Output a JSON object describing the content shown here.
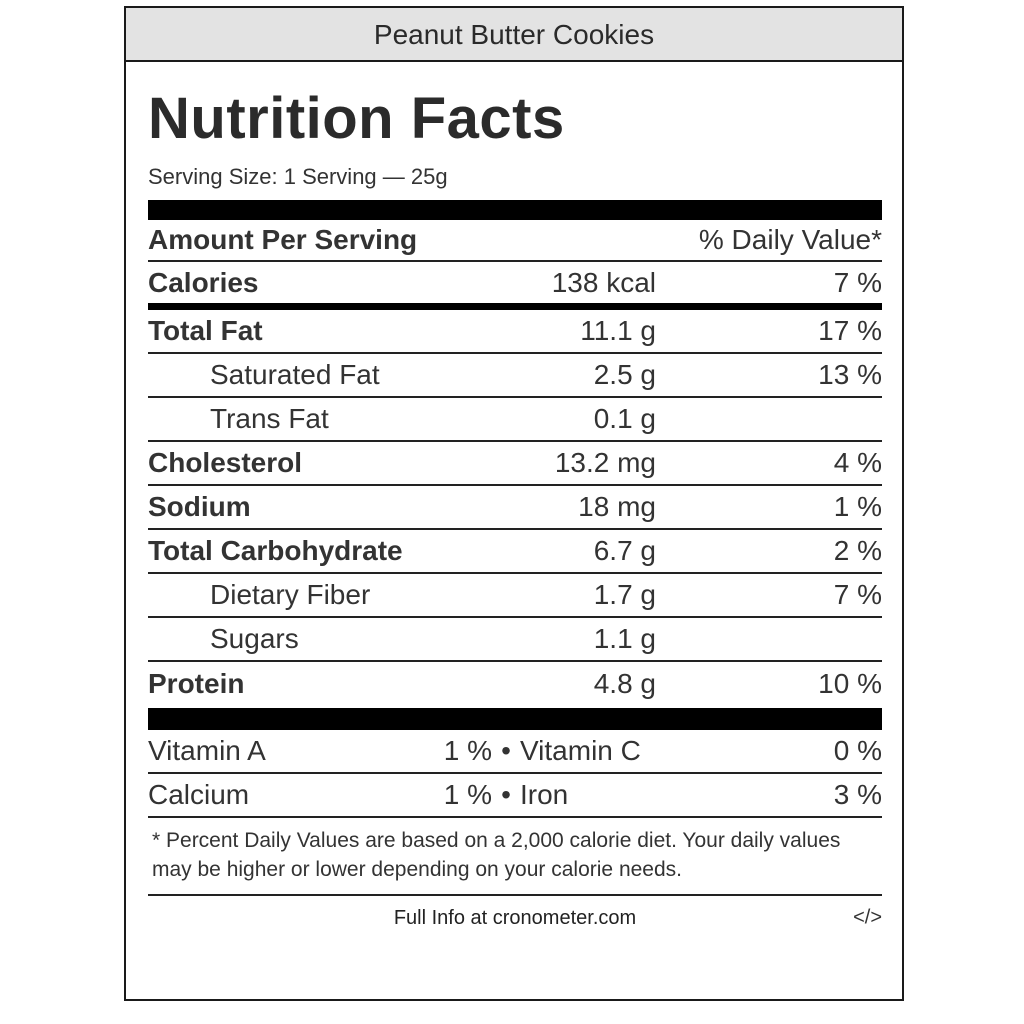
{
  "title": "Peanut Butter Cookies",
  "heading": "Nutrition Facts",
  "serving_size": "Serving Size: 1 Serving — 25g",
  "header": {
    "amount_label": "Amount Per Serving",
    "dv_label": "% Daily Value*"
  },
  "calories": {
    "name": "Calories",
    "amount": "138 kcal",
    "dv": "7 %"
  },
  "nutrients": [
    {
      "name": "Total Fat",
      "amount": "11.1 g",
      "dv": "17 %"
    },
    {
      "name": "Saturated Fat",
      "amount": "2.5 g",
      "dv": "13 %"
    },
    {
      "name": "Trans Fat",
      "amount": "0.1 g",
      "dv": ""
    },
    {
      "name": "Cholesterol",
      "amount": "13.2 mg",
      "dv": "4 %"
    },
    {
      "name": "Sodium",
      "amount": "18 mg",
      "dv": "1 %"
    },
    {
      "name": "Total Carbohydrate",
      "amount": "6.7 g",
      "dv": "2 %"
    },
    {
      "name": "Dietary Fiber",
      "amount": "1.7 g",
      "dv": "7 %"
    },
    {
      "name": "Sugars",
      "amount": "1.1 g",
      "dv": ""
    },
    {
      "name": "Protein",
      "amount": "4.8 g",
      "dv": "10 %"
    }
  ],
  "vitamins": [
    {
      "left_name": "Vitamin A",
      "left_dv": "1 %",
      "separator": "•",
      "right_name": "Vitamin C",
      "right_dv": "0 %"
    },
    {
      "left_name": "Calcium",
      "left_dv": "1 %",
      "separator": "•",
      "right_name": "Iron",
      "right_dv": "3 %"
    }
  ],
  "footnote": "* Percent Daily Values are based on a 2,000 calorie diet. Your daily values may be higher or lower depending on your calorie needs.",
  "footer": {
    "link_text": "Full Info at cronometer.com",
    "embed_icon": "</>"
  }
}
